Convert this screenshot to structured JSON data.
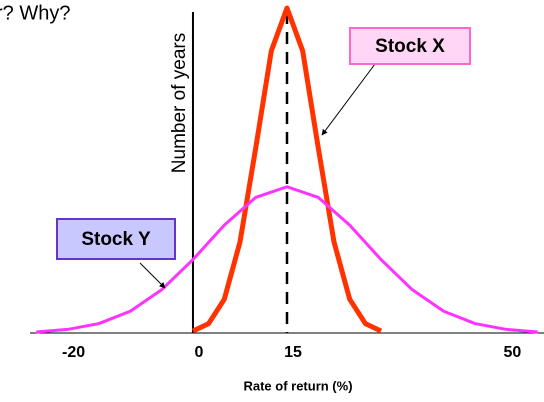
{
  "chart_data": {
    "type": "line",
    "title": "r? Why?",
    "xlabel": "Rate of return (%)",
    "ylabel": "Number of years",
    "xlim": [
      -26,
      56
    ],
    "ylim": [
      0,
      100
    ],
    "xticks": [
      -20,
      0,
      15,
      50
    ],
    "mean_line": 15,
    "series": [
      {
        "name": "Stock X",
        "color": "#ff3300",
        "x": [
          0,
          2.5,
          5,
          7.5,
          10,
          12.5,
          15,
          17.5,
          20,
          22.5,
          25,
          27.5,
          30
        ],
        "values": [
          0.6,
          2.9,
          10.4,
          28,
          56.8,
          86.8,
          100,
          86.8,
          56.8,
          28,
          10.4,
          2.9,
          0.6
        ]
      },
      {
        "name": "Stock Y",
        "color": "#ff33ff",
        "x": [
          -25,
          -20,
          -15,
          -10,
          -5,
          0,
          5,
          10,
          15,
          20,
          25,
          30,
          35,
          40,
          45,
          50,
          55
        ],
        "values": [
          0.3,
          1.1,
          2.9,
          6.7,
          13.3,
          22.6,
          33.2,
          41.7,
          45,
          41.7,
          33.2,
          22.6,
          13.3,
          6.7,
          2.9,
          1.1,
          0.3
        ]
      }
    ]
  }
}
